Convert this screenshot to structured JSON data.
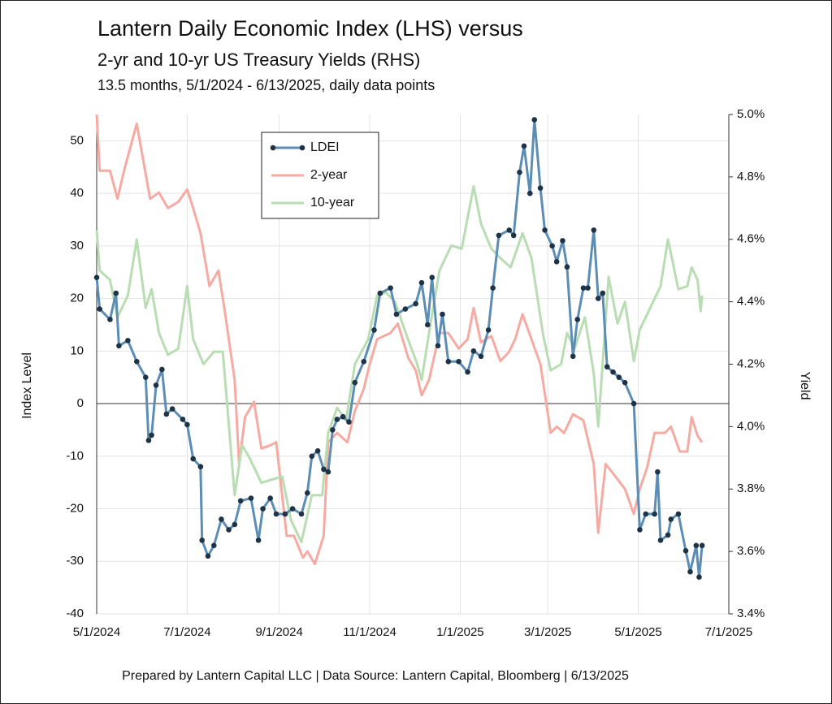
{
  "chart_data": {
    "type": "line",
    "title": "Lantern Daily Economic Index (LHS) versus",
    "subtitle": "2-yr and 10-yr US Treasury Yields (RHS)",
    "note": "13.5 months, 5/1/2024 - 6/13/2025, daily data points",
    "footer": "Prepared by Lantern Capital LLC | Data Source: Lantern Capital, Bloomberg | 6/13/2025",
    "ylabel": "Index Level",
    "y2label": "Yield",
    "xlim": [
      "2024-05-01",
      "2025-07-01"
    ],
    "xticks": [
      {
        "value": "2024-05-01",
        "label": "5/1/2024"
      },
      {
        "value": "2024-07-01",
        "label": "7/1/2024"
      },
      {
        "value": "2024-09-01",
        "label": "9/1/2024"
      },
      {
        "value": "2024-11-01",
        "label": "11/1/2024"
      },
      {
        "value": "2025-01-01",
        "label": "1/1/2025"
      },
      {
        "value": "2025-03-01",
        "label": "3/1/2025"
      },
      {
        "value": "2025-05-01",
        "label": "5/1/2025"
      },
      {
        "value": "2025-07-01",
        "label": "7/1/2025"
      }
    ],
    "ylim": [
      -40,
      55
    ],
    "yticks": [
      -40,
      -30,
      -20,
      -10,
      0,
      10,
      20,
      30,
      40,
      50
    ],
    "y2lim": [
      3.4,
      5.0
    ],
    "y2ticks": [
      {
        "value": 3.4,
        "label": "3.4%"
      },
      {
        "value": 3.6,
        "label": "3.6%"
      },
      {
        "value": 3.8,
        "label": "3.8%"
      },
      {
        "value": 4.0,
        "label": "4.0%"
      },
      {
        "value": 4.2,
        "label": "4.2%"
      },
      {
        "value": 4.4,
        "label": "4.4%"
      },
      {
        "value": 4.6,
        "label": "4.6%"
      },
      {
        "value": 4.8,
        "label": "4.8%"
      },
      {
        "value": 5.0,
        "label": "5.0%"
      }
    ],
    "grid": true,
    "legend": "upper center",
    "series": [
      {
        "name": "LDEI",
        "color": "#5b8db5",
        "marker_color": "#1f3347",
        "markers": true,
        "x": [
          "2024-05-01",
          "2024-05-03",
          "2024-05-10",
          "2024-05-14",
          "2024-05-16",
          "2024-05-22",
          "2024-05-28",
          "2024-06-03",
          "2024-06-05",
          "2024-06-07",
          "2024-06-10",
          "2024-06-14",
          "2024-06-17",
          "2024-06-21",
          "2024-06-28",
          "2024-07-01",
          "2024-07-05",
          "2024-07-10",
          "2024-07-11",
          "2024-07-15",
          "2024-07-19",
          "2024-07-24",
          "2024-07-29",
          "2024-08-02",
          "2024-08-06",
          "2024-08-13",
          "2024-08-18",
          "2024-08-21",
          "2024-08-26",
          "2024-08-30",
          "2024-09-05",
          "2024-09-10",
          "2024-09-16",
          "2024-09-20",
          "2024-09-23",
          "2024-09-27",
          "2024-10-01",
          "2024-10-04",
          "2024-10-07",
          "2024-10-10",
          "2024-10-14",
          "2024-10-18",
          "2024-10-22",
          "2024-10-28",
          "2024-11-04",
          "2024-11-08",
          "2024-11-15",
          "2024-11-19",
          "2024-11-25",
          "2024-12-02",
          "2024-12-06",
          "2024-12-10",
          "2024-12-13",
          "2024-12-17",
          "2024-12-20",
          "2024-12-24",
          "2024-12-31",
          "2025-01-06",
          "2025-01-10",
          "2025-01-15",
          "2025-01-20",
          "2025-01-23",
          "2025-01-27",
          "2025-02-03",
          "2025-02-06",
          "2025-02-10",
          "2025-02-13",
          "2025-02-17",
          "2025-02-20",
          "2025-02-24",
          "2025-02-27",
          "2025-03-04",
          "2025-03-07",
          "2025-03-11",
          "2025-03-14",
          "2025-03-18",
          "2025-03-21",
          "2025-03-25",
          "2025-03-28",
          "2025-04-01",
          "2025-04-04",
          "2025-04-07",
          "2025-04-10",
          "2025-04-14",
          "2025-04-18",
          "2025-04-22",
          "2025-04-28",
          "2025-05-02",
          "2025-05-06",
          "2025-05-12",
          "2025-05-14",
          "2025-05-16",
          "2025-05-21",
          "2025-05-23",
          "2025-05-28",
          "2025-06-02",
          "2025-06-05",
          "2025-06-09",
          "2025-06-11",
          "2025-06-13"
        ],
        "values": [
          24,
          18,
          16,
          21,
          11,
          12,
          8,
          5,
          -7,
          -6,
          3.5,
          6.5,
          -2,
          -1,
          -3,
          -4,
          -10.5,
          -12,
          -26,
          -29,
          -27,
          -22,
          -24,
          -23,
          -18.5,
          -18,
          -26,
          -20,
          -18,
          -21,
          -21,
          -20,
          -21,
          -17,
          -10,
          -9,
          -12.5,
          -13,
          -5,
          -3,
          -2.5,
          -3.5,
          4,
          8,
          14,
          21,
          22,
          17,
          18,
          19,
          23,
          15,
          24,
          11,
          17,
          8,
          8,
          6,
          10,
          9,
          14,
          22,
          32,
          33,
          32,
          44,
          49,
          40,
          54,
          41,
          33,
          30,
          27,
          31,
          26,
          9,
          16,
          22,
          22,
          33,
          20,
          21,
          7,
          6,
          5,
          4,
          0,
          -24,
          -21,
          -21,
          -13,
          -26,
          -25,
          -22,
          -21,
          -28,
          -32,
          -27,
          -33,
          -27
        ]
      },
      {
        "name": "2-year",
        "color": "#f6aaa2",
        "axis": "y2",
        "x": [
          "2024-05-01",
          "2024-05-03",
          "2024-05-10",
          "2024-05-15",
          "2024-05-20",
          "2024-05-28",
          "2024-05-31",
          "2024-06-06",
          "2024-06-12",
          "2024-06-18",
          "2024-06-25",
          "2024-07-01",
          "2024-07-05",
          "2024-07-10",
          "2024-07-16",
          "2024-07-22",
          "2024-07-26",
          "2024-08-02",
          "2024-08-05",
          "2024-08-09",
          "2024-08-15",
          "2024-08-20",
          "2024-08-26",
          "2024-08-30",
          "2024-09-06",
          "2024-09-11",
          "2024-09-17",
          "2024-09-20",
          "2024-09-25",
          "2024-10-01",
          "2024-10-04",
          "2024-10-10",
          "2024-10-17",
          "2024-10-22",
          "2024-10-28",
          "2024-11-01",
          "2024-11-06",
          "2024-11-15",
          "2024-11-20",
          "2024-11-27",
          "2024-12-02",
          "2024-12-06",
          "2024-12-11",
          "2024-12-18",
          "2024-12-24",
          "2024-12-31",
          "2025-01-06",
          "2025-01-10",
          "2025-01-15",
          "2025-01-22",
          "2025-01-28",
          "2025-02-03",
          "2025-02-07",
          "2025-02-12",
          "2025-02-18",
          "2025-02-24",
          "2025-03-03",
          "2025-03-07",
          "2025-03-12",
          "2025-03-18",
          "2025-03-25",
          "2025-04-01",
          "2025-04-04",
          "2025-04-09",
          "2025-04-14",
          "2025-04-22",
          "2025-04-28",
          "2025-05-02",
          "2025-05-07",
          "2025-05-12",
          "2025-05-19",
          "2025-05-23",
          "2025-05-29",
          "2025-06-03",
          "2025-06-06",
          "2025-06-10",
          "2025-06-13"
        ],
        "values": [
          5.0,
          4.82,
          4.82,
          4.73,
          4.83,
          4.97,
          4.89,
          4.73,
          4.75,
          4.7,
          4.72,
          4.76,
          4.7,
          4.62,
          4.45,
          4.5,
          4.38,
          4.15,
          3.88,
          4.03,
          4.08,
          3.93,
          3.94,
          3.95,
          3.65,
          3.65,
          3.58,
          3.6,
          3.56,
          3.65,
          3.95,
          3.98,
          3.95,
          4.05,
          4.12,
          4.2,
          4.28,
          4.3,
          4.33,
          4.22,
          4.18,
          4.1,
          4.15,
          4.3,
          4.3,
          4.25,
          4.28,
          4.38,
          4.27,
          4.29,
          4.21,
          4.24,
          4.28,
          4.36,
          4.28,
          4.2,
          3.98,
          4.0,
          3.98,
          4.04,
          4.02,
          3.88,
          3.66,
          3.88,
          3.85,
          3.8,
          3.72,
          3.8,
          3.87,
          3.98,
          3.98,
          4.0,
          3.92,
          3.92,
          4.03,
          3.97,
          3.95
        ]
      },
      {
        "name": "10-year",
        "color": "#b9ddb2",
        "axis": "y2",
        "x": [
          "2024-05-01",
          "2024-05-03",
          "2024-05-10",
          "2024-05-15",
          "2024-05-22",
          "2024-05-28",
          "2024-06-03",
          "2024-06-07",
          "2024-06-12",
          "2024-06-18",
          "2024-06-25",
          "2024-07-01",
          "2024-07-05",
          "2024-07-12",
          "2024-07-19",
          "2024-07-25",
          "2024-08-02",
          "2024-08-07",
          "2024-08-12",
          "2024-08-20",
          "2024-08-27",
          "2024-09-03",
          "2024-09-09",
          "2024-09-16",
          "2024-09-23",
          "2024-09-30",
          "2024-10-04",
          "2024-10-10",
          "2024-10-16",
          "2024-10-22",
          "2024-10-31",
          "2024-11-06",
          "2024-11-12",
          "2024-11-18",
          "2024-11-26",
          "2024-12-03",
          "2024-12-06",
          "2024-12-12",
          "2024-12-18",
          "2024-12-26",
          "2025-01-02",
          "2025-01-10",
          "2025-01-15",
          "2025-01-22",
          "2025-01-28",
          "2025-02-04",
          "2025-02-12",
          "2025-02-18",
          "2025-02-26",
          "2025-03-03",
          "2025-03-10",
          "2025-03-14",
          "2025-03-19",
          "2025-03-26",
          "2025-04-01",
          "2025-04-04",
          "2025-04-11",
          "2025-04-17",
          "2025-04-22",
          "2025-04-28",
          "2025-05-02",
          "2025-05-09",
          "2025-05-16",
          "2025-05-21",
          "2025-05-28",
          "2025-06-03",
          "2025-06-06",
          "2025-06-10",
          "2025-06-12",
          "2025-06-13"
        ],
        "values": [
          4.63,
          4.5,
          4.47,
          4.35,
          4.42,
          4.6,
          4.38,
          4.44,
          4.3,
          4.23,
          4.25,
          4.45,
          4.28,
          4.2,
          4.24,
          4.24,
          3.78,
          3.94,
          3.9,
          3.82,
          3.83,
          3.84,
          3.7,
          3.63,
          3.78,
          3.78,
          3.98,
          4.06,
          4.02,
          4.2,
          4.28,
          4.42,
          4.43,
          4.4,
          4.29,
          4.2,
          4.15,
          4.33,
          4.5,
          4.58,
          4.57,
          4.77,
          4.65,
          4.57,
          4.54,
          4.51,
          4.62,
          4.54,
          4.29,
          4.18,
          4.2,
          4.3,
          4.25,
          4.35,
          4.17,
          4.0,
          4.48,
          4.33,
          4.4,
          4.21,
          4.31,
          4.38,
          4.45,
          4.6,
          4.44,
          4.45,
          4.51,
          4.47,
          4.37,
          4.42
        ]
      }
    ]
  }
}
